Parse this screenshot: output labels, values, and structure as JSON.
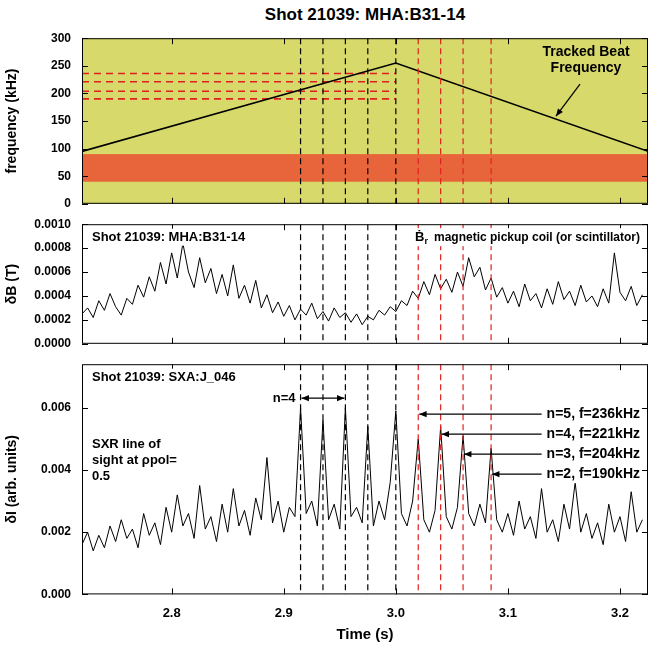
{
  "chart_data": [
    {
      "type": "line",
      "title": "Shot 21039: MHA:B31-14",
      "ylabel": "frequency (kHz)",
      "xlim": [
        2.72,
        3.225
      ],
      "xticks": [
        2.8,
        2.9,
        {
          "value": 3,
          "label": "3.0"
        },
        3.1,
        3.2
      ],
      "ylim": [
        0,
        300
      ],
      "yticks": [
        0,
        50,
        100,
        150,
        200,
        250,
        300
      ],
      "tick_labels": "y",
      "background": "#d7d96a",
      "spectrogram_band": {
        "ylim": [
          40,
          90
        ],
        "color": "#e8643a"
      },
      "annotation": "Tracked Beat Frequency",
      "series": [
        {
          "x": [
            2.72,
            3.0,
            3.225
          ],
          "values": [
            95,
            255,
            95
          ],
          "color": "#000000",
          "line_style": "solid"
        },
        {
          "x": [
            2.72,
            3.0
          ],
          "values": [
            236,
            236
          ],
          "color": "#e02020",
          "line_style": "dashed"
        },
        {
          "x": [
            2.72,
            3.0
          ],
          "values": [
            221,
            221
          ],
          "color": "#e02020",
          "line_style": "dashed"
        },
        {
          "x": [
            2.72,
            3.0
          ],
          "values": [
            204,
            204
          ],
          "color": "#e02020",
          "line_style": "dashed"
        },
        {
          "x": [
            2.72,
            3.0
          ],
          "values": [
            190,
            190
          ],
          "color": "#e02020",
          "line_style": "dashed"
        }
      ],
      "vlines": [
        {
          "x": 2.915,
          "color": "#000000"
        },
        {
          "x": 2.935,
          "color": "#000000"
        },
        {
          "x": 2.955,
          "color": "#000000"
        },
        {
          "x": 2.975,
          "color": "#000000"
        },
        {
          "x": 3.0,
          "color": "#000000"
        },
        {
          "x": 3.02,
          "color": "#e02020"
        },
        {
          "x": 3.04,
          "color": "#e02020"
        },
        {
          "x": 3.06,
          "color": "#e02020"
        },
        {
          "x": 3.085,
          "color": "#e02020"
        }
      ]
    },
    {
      "type": "line",
      "ylabel": "δB (T)",
      "xlim": [
        2.72,
        3.225
      ],
      "xticks": [
        2.8,
        2.9,
        {
          "value": 3,
          "label": "3.0"
        },
        3.1,
        3.2
      ],
      "ylim": [
        0,
        0.001
      ],
      "yticks": [
        {
          "value": 0,
          "label": "0.0000"
        },
        {
          "value": 0.0002,
          "label": "0.0002"
        },
        {
          "value": 0.0004,
          "label": "0.0004"
        },
        {
          "value": 0.0006,
          "label": "0.0006"
        },
        {
          "value": 0.0008,
          "label": "0.0008"
        },
        {
          "value": 0.001,
          "label": "0.0010"
        }
      ],
      "tick_labels": "y",
      "annotations": {
        "label": "Shot 21039: MHA:B31-14",
        "sensor": "Ḃr",
        "sensor_note": "magnetic pickup coil (or scintillator)"
      },
      "x": [
        2.72,
        2.725,
        2.73,
        2.735,
        2.74,
        2.745,
        2.75,
        2.755,
        2.76,
        2.765,
        2.77,
        2.775,
        2.78,
        2.785,
        2.79,
        2.795,
        2.8,
        2.805,
        2.81,
        2.815,
        2.82,
        2.825,
        2.83,
        2.835,
        2.84,
        2.845,
        2.85,
        2.855,
        2.86,
        2.865,
        2.87,
        2.875,
        2.88,
        2.885,
        2.89,
        2.895,
        2.9,
        2.905,
        2.91,
        2.915,
        2.92,
        2.925,
        2.93,
        2.935,
        2.94,
        2.945,
        2.95,
        2.955,
        2.96,
        2.965,
        2.97,
        2.975,
        2.98,
        2.985,
        2.99,
        2.995,
        3.0,
        3.005,
        3.01,
        3.015,
        3.02,
        3.025,
        3.03,
        3.035,
        3.04,
        3.045,
        3.05,
        3.055,
        3.06,
        3.065,
        3.07,
        3.075,
        3.08,
        3.085,
        3.09,
        3.095,
        3.1,
        3.105,
        3.11,
        3.115,
        3.12,
        3.125,
        3.13,
        3.135,
        3.14,
        3.145,
        3.15,
        3.155,
        3.16,
        3.165,
        3.17,
        3.175,
        3.18,
        3.185,
        3.19,
        3.195,
        3.2,
        3.205,
        3.21,
        3.215,
        3.22
      ],
      "series": [
        {
          "color": "#000000",
          "line_style": "solid",
          "values": [
            0.00025,
            0.0003,
            0.00022,
            0.00036,
            0.00028,
            0.00042,
            0.00031,
            0.00024,
            0.00038,
            0.00033,
            0.00049,
            0.00039,
            0.00056,
            0.00044,
            0.00068,
            0.0005,
            0.00076,
            0.00055,
            0.00084,
            0.0006,
            0.00047,
            0.00072,
            0.00051,
            0.00063,
            0.00042,
            0.00058,
            0.0004,
            0.00066,
            0.00038,
            0.00049,
            0.00034,
            0.00053,
            0.0003,
            0.00041,
            0.00026,
            0.00035,
            0.00023,
            0.00032,
            0.0002,
            0.00029,
            0.00024,
            0.00034,
            0.00021,
            0.00027,
            0.00019,
            0.0003,
            0.00022,
            0.00026,
            0.00018,
            0.00025,
            0.00016,
            0.00023,
            0.0002,
            0.00028,
            0.00024,
            0.00031,
            0.00027,
            0.00036,
            0.00032,
            0.00044,
            0.00038,
            0.00052,
            0.00041,
            0.00058,
            0.00046,
            0.00054,
            0.00043,
            0.0006,
            0.00048,
            0.00072,
            0.00056,
            0.00064,
            0.00045,
            0.00055,
            0.00039,
            0.00047,
            0.00034,
            0.00044,
            0.00031,
            0.0005,
            0.00036,
            0.00042,
            0.0003,
            0.00046,
            0.00033,
            0.00052,
            0.00037,
            0.00044,
            0.00032,
            0.00049,
            0.00035,
            0.0004,
            0.00031,
            0.00046,
            0.00034,
            0.00076,
            0.00043,
            0.00036,
            0.00048,
            0.00032,
            0.00041
          ]
        }
      ],
      "vlines": [
        {
          "x": 2.915,
          "color": "#000000"
        },
        {
          "x": 2.935,
          "color": "#000000"
        },
        {
          "x": 2.955,
          "color": "#000000"
        },
        {
          "x": 2.975,
          "color": "#000000"
        },
        {
          "x": 3.0,
          "color": "#000000"
        },
        {
          "x": 3.02,
          "color": "#e02020"
        },
        {
          "x": 3.04,
          "color": "#e02020"
        },
        {
          "x": 3.06,
          "color": "#e02020"
        },
        {
          "x": 3.085,
          "color": "#e02020"
        }
      ]
    },
    {
      "type": "line",
      "xlabel": "Time (s)",
      "ylabel": "δI (arb. units)",
      "xlim": [
        2.72,
        3.225
      ],
      "xticks": [
        2.8,
        2.9,
        {
          "value": 3,
          "label": "3.0"
        },
        3.1,
        3.2
      ],
      "ylim": [
        0,
        0.0074
      ],
      "yticks": [
        {
          "value": 0,
          "label": "0.000"
        },
        {
          "value": 0.002,
          "label": "0.002"
        },
        {
          "value": 0.004,
          "label": "0.004"
        },
        {
          "value": 0.006,
          "label": "0.006"
        }
      ],
      "annotations": {
        "label": "Shot 21039: SXA:J_046",
        "sightline": "SXR line of sight at ρpol= 0.5",
        "spacing": "n=4"
      },
      "x": [
        2.72,
        2.725,
        2.73,
        2.735,
        2.74,
        2.745,
        2.75,
        2.755,
        2.76,
        2.765,
        2.77,
        2.775,
        2.78,
        2.785,
        2.79,
        2.795,
        2.8,
        2.805,
        2.81,
        2.815,
        2.82,
        2.825,
        2.83,
        2.835,
        2.84,
        2.845,
        2.85,
        2.855,
        2.86,
        2.865,
        2.87,
        2.875,
        2.88,
        2.885,
        2.89,
        2.895,
        2.9,
        2.905,
        2.91,
        2.915,
        2.92,
        2.925,
        2.93,
        2.935,
        2.94,
        2.945,
        2.95,
        2.955,
        2.96,
        2.965,
        2.97,
        2.975,
        2.98,
        2.985,
        2.99,
        2.995,
        3.0,
        3.005,
        3.01,
        3.015,
        3.02,
        3.025,
        3.03,
        3.035,
        3.04,
        3.045,
        3.05,
        3.055,
        3.06,
        3.065,
        3.07,
        3.075,
        3.08,
        3.085,
        3.09,
        3.095,
        3.1,
        3.105,
        3.11,
        3.115,
        3.12,
        3.125,
        3.13,
        3.135,
        3.14,
        3.145,
        3.15,
        3.155,
        3.16,
        3.165,
        3.17,
        3.175,
        3.18,
        3.185,
        3.19,
        3.195,
        3.2,
        3.205,
        3.21,
        3.215,
        3.22
      ],
      "series": [
        {
          "color": "#000000",
          "line_style": "solid",
          "values": [
            0.0016,
            0.002,
            0.0014,
            0.0019,
            0.0015,
            0.0022,
            0.0017,
            0.0024,
            0.0018,
            0.0021,
            0.0015,
            0.0026,
            0.0019,
            0.0023,
            0.0016,
            0.0028,
            0.002,
            0.0032,
            0.0022,
            0.0026,
            0.0018,
            0.0035,
            0.0021,
            0.0025,
            0.0017,
            0.0029,
            0.002,
            0.0034,
            0.0022,
            0.0027,
            0.0019,
            0.0031,
            0.0024,
            0.0044,
            0.0023,
            0.003,
            0.002,
            0.0028,
            0.0025,
            0.006,
            0.0026,
            0.003,
            0.0022,
            0.0056,
            0.0024,
            0.0029,
            0.0021,
            0.006,
            0.0025,
            0.0028,
            0.0023,
            0.0054,
            0.0022,
            0.003,
            0.0024,
            0.0036,
            0.0059,
            0.0026,
            0.0022,
            0.003,
            0.005,
            0.0024,
            0.002,
            0.0027,
            0.0054,
            0.0025,
            0.0021,
            0.0028,
            0.0051,
            0.0026,
            0.0022,
            0.0029,
            0.0023,
            0.0047,
            0.0024,
            0.002,
            0.0026,
            0.0019,
            0.003,
            0.0021,
            0.0025,
            0.0018,
            0.0034,
            0.002,
            0.0024,
            0.0017,
            0.0029,
            0.0021,
            0.0036,
            0.002,
            0.0026,
            0.0018,
            0.0023,
            0.0016,
            0.0029,
            0.002,
            0.0025,
            0.0017,
            0.0033,
            0.002,
            0.0024
          ]
        }
      ],
      "vlines": [
        {
          "x": 2.915,
          "color": "#000000"
        },
        {
          "x": 2.935,
          "color": "#000000"
        },
        {
          "x": 2.955,
          "color": "#000000"
        },
        {
          "x": 2.975,
          "color": "#000000"
        },
        {
          "x": 3.0,
          "color": "#000000"
        },
        {
          "x": 3.02,
          "color": "#e02020",
          "label": "n=5, f=236kHz"
        },
        {
          "x": 3.04,
          "color": "#e02020",
          "label": "n=4, f=221kHz"
        },
        {
          "x": 3.06,
          "color": "#e02020",
          "label": "n=3, f=204kHz"
        },
        {
          "x": 3.085,
          "color": "#e02020",
          "label": "n=2, f=190kHz"
        }
      ]
    }
  ]
}
